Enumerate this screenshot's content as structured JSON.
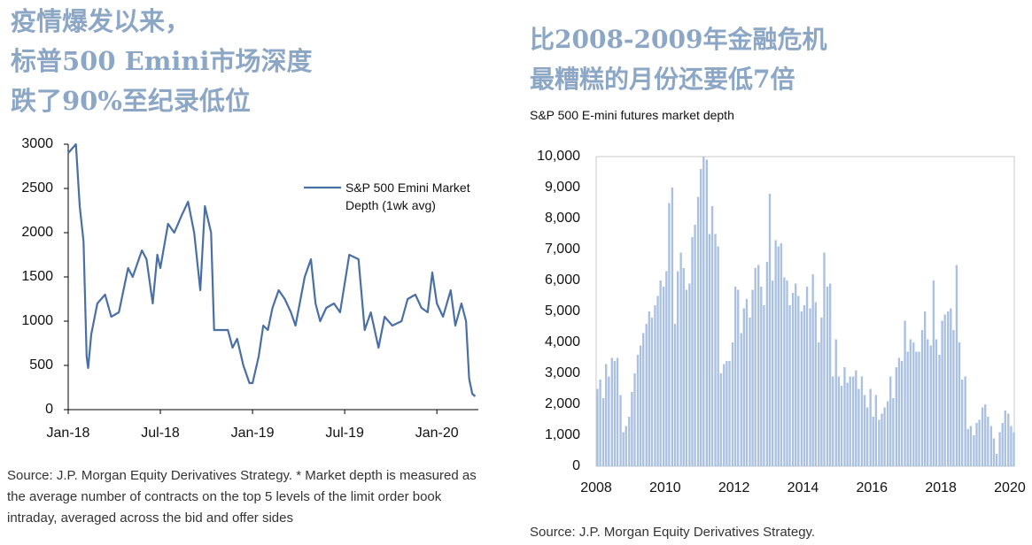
{
  "chart_data": [
    {
      "type": "line",
      "title": [
        "疫情爆发以来，",
        "标普500 Emini市场深度",
        "跌了90%至纪录低位"
      ],
      "x": [
        0,
        0.5,
        0.75,
        1.0,
        1.2,
        1.3,
        1.5,
        1.9,
        2.4,
        2.8,
        3.3,
        3.9,
        4.2,
        4.8,
        5.1,
        5.5,
        5.8,
        6.0,
        6.5,
        6.9,
        7.4,
        7.8,
        8.2,
        8.6,
        8.9,
        9.3,
        9.5,
        9.9,
        10.4,
        10.7,
        11.0,
        11.4,
        11.8,
        12.0,
        12.4,
        12.7,
        13.0,
        13.3,
        13.7,
        14.1,
        14.5,
        14.8,
        15.4,
        15.8,
        16.1,
        16.4,
        16.8,
        17.3,
        17.7,
        18.3,
        18.9,
        19.3,
        19.7,
        20.2,
        20.6,
        21.1,
        21.7,
        22.1,
        22.6,
        23.0,
        23.4,
        23.7,
        24.0,
        24.4,
        24.9,
        25.2,
        25.6,
        25.9,
        26.1,
        26.3,
        26.5
      ],
      "series": [
        {
          "name": "S&P 500 Emini Market Depth (1wk avg)",
          "color": "#4a6fa5",
          "values": [
            2900,
            3000,
            2300,
            1900,
            600,
            470,
            850,
            1200,
            1300,
            1050,
            1100,
            1600,
            1500,
            1800,
            1700,
            1200,
            1750,
            1600,
            2100,
            2000,
            2200,
            2350,
            2000,
            1350,
            2300,
            2000,
            900,
            900,
            900,
            700,
            800,
            500,
            300,
            300,
            600,
            950,
            900,
            1150,
            1350,
            1250,
            1100,
            950,
            1500,
            1700,
            1200,
            1000,
            1150,
            1200,
            1100,
            1750,
            1700,
            900,
            1100,
            700,
            1050,
            950,
            1000,
            1250,
            1300,
            1150,
            1100,
            1550,
            1200,
            1050,
            1350,
            950,
            1200,
            1000,
            350,
            180,
            150
          ]
        }
      ],
      "xlim": [
        0,
        26.7
      ],
      "xticks": [
        {
          "value": 0,
          "label": "Jan-18"
        },
        {
          "value": 6,
          "label": "Jul-18"
        },
        {
          "value": 12,
          "label": "Jan-19"
        },
        {
          "value": 18,
          "label": "Jul-19"
        },
        {
          "value": 24,
          "label": "Jan-20"
        }
      ],
      "ylim": [
        0,
        3000
      ],
      "yticks": [
        0,
        500,
        1000,
        1500,
        2000,
        2500,
        3000
      ],
      "grid": false,
      "source": "Source: J.P. Morgan Equity Derivatives Strategy. * Market depth is measured as the average number of contracts on the top 5 levels of the limit order book intraday, averaged across the bid and offer sides"
    },
    {
      "type": "bar",
      "title": [
        "比2008-2009年金融危机",
        "最糟糕的月份还要低7倍"
      ],
      "subtitle": "S&P 500 E-mini futures market depth",
      "color": "#a9c0e0",
      "x": [
        2008,
        2008.08,
        2008.17,
        2008.25,
        2008.33,
        2008.42,
        2008.5,
        2008.58,
        2008.67,
        2008.75,
        2008.83,
        2008.92,
        2009,
        2009.08,
        2009.17,
        2009.25,
        2009.33,
        2009.42,
        2009.5,
        2009.58,
        2009.67,
        2009.75,
        2009.83,
        2009.92,
        2010,
        2010.08,
        2010.17,
        2010.25,
        2010.33,
        2010.42,
        2010.5,
        2010.58,
        2010.67,
        2010.75,
        2010.83,
        2010.92,
        2011,
        2011.08,
        2011.17,
        2011.25,
        2011.33,
        2011.42,
        2011.5,
        2011.58,
        2011.67,
        2011.75,
        2011.83,
        2011.92,
        2012,
        2012.08,
        2012.17,
        2012.25,
        2012.33,
        2012.42,
        2012.5,
        2012.58,
        2012.67,
        2012.75,
        2012.83,
        2012.92,
        2013,
        2013.08,
        2013.17,
        2013.25,
        2013.33,
        2013.42,
        2013.5,
        2013.58,
        2013.67,
        2013.75,
        2013.83,
        2013.92,
        2014,
        2014.08,
        2014.17,
        2014.25,
        2014.33,
        2014.42,
        2014.5,
        2014.58,
        2014.67,
        2014.75,
        2014.83,
        2014.92,
        2015,
        2015.08,
        2015.17,
        2015.25,
        2015.33,
        2015.42,
        2015.5,
        2015.58,
        2015.67,
        2015.75,
        2015.83,
        2015.92,
        2016,
        2016.08,
        2016.17,
        2016.25,
        2016.33,
        2016.42,
        2016.5,
        2016.58,
        2016.67,
        2016.75,
        2016.83,
        2016.92,
        2017,
        2017.08,
        2017.17,
        2017.25,
        2017.33,
        2017.42,
        2017.5,
        2017.58,
        2017.67,
        2017.75,
        2017.83,
        2017.92,
        2018,
        2018.08,
        2018.17,
        2018.25,
        2018.33,
        2018.42,
        2018.5,
        2018.58,
        2018.67,
        2018.75,
        2018.83,
        2018.92,
        2019,
        2019.08,
        2019.17,
        2019.25,
        2019.33,
        2019.42,
        2019.5,
        2019.58,
        2019.67,
        2019.75,
        2019.83,
        2019.92,
        2020,
        2020.08
      ],
      "values": [
        2500,
        2800,
        2200,
        3300,
        2900,
        3500,
        3400,
        3500,
        2300,
        1100,
        1300,
        1600,
        2400,
        3000,
        3600,
        3900,
        4300,
        4600,
        5000,
        4800,
        5200,
        5500,
        6000,
        5800,
        6300,
        8500,
        9000,
        4600,
        6300,
        6900,
        6400,
        5700,
        5900,
        7400,
        7800,
        8700,
        9600,
        10000,
        9900,
        7500,
        8400,
        7500,
        7100,
        3000,
        3300,
        3400,
        3400,
        4000,
        5800,
        5700,
        4300,
        5100,
        5400,
        4800,
        5700,
        6400,
        6500,
        5800,
        5200,
        6600,
        8800,
        6000,
        7300,
        7100,
        7200,
        6100,
        6000,
        5200,
        5600,
        5900,
        5500,
        5000,
        5200,
        5800,
        5100,
        6200,
        5300,
        4000,
        4800,
        6900,
        5800,
        5900,
        2900,
        4100,
        2900,
        2600,
        3200,
        2700,
        2900,
        2900,
        3100,
        2500,
        2900,
        2300,
        1900,
        2500,
        1600,
        2300,
        1500,
        1700,
        1900,
        2100,
        2900,
        2200,
        3200,
        3500,
        3400,
        4700,
        3700,
        4100,
        4000,
        3700,
        3700,
        4400,
        5000,
        4100,
        3900,
        6000,
        4100,
        3600,
        4700,
        4900,
        5000,
        5100,
        4400,
        6500,
        4000,
        2800,
        2900,
        1200,
        1300,
        1000,
        1400,
        1500,
        1900,
        2000,
        1600,
        1300,
        900,
        400,
        1100,
        1400,
        1800,
        1700,
        1300,
        1100
      ],
      "xlim": [
        2008,
        2020.13
      ],
      "xticks": [
        2008,
        2010,
        2012,
        2014,
        2016,
        2018,
        2020
      ],
      "ylim": [
        0,
        10000
      ],
      "yticks": [
        0,
        {
          "value": 1000,
          "label": "1,000"
        },
        {
          "value": 2000,
          "label": "2,000"
        },
        {
          "value": 3000,
          "label": "3,000"
        },
        {
          "value": 4000,
          "label": "4,000"
        },
        {
          "value": 5000,
          "label": "5,000"
        },
        {
          "value": 6000,
          "label": "6,000"
        },
        {
          "value": 7000,
          "label": "7,000"
        },
        {
          "value": 8000,
          "label": "8,000"
        },
        {
          "value": 9000,
          "label": "9,000"
        },
        {
          "value": 10000,
          "label": "10,000"
        }
      ],
      "grid": false,
      "source": "Source: J.P. Morgan Equity Derivatives Strategy."
    }
  ]
}
